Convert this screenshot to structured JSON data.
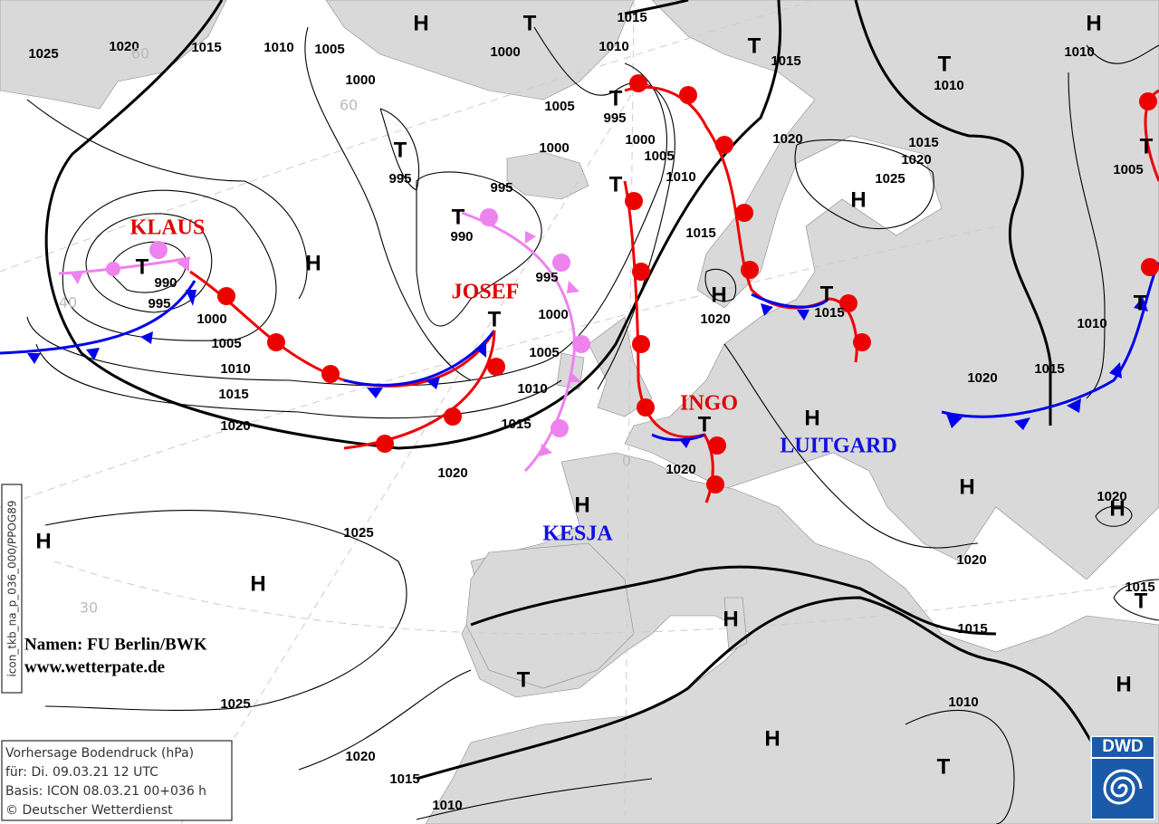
{
  "isobar_labels": [
    1025,
    1020,
    1015,
    1010,
    1005,
    1000,
    1000,
    1015,
    1010,
    1015,
    1010,
    1010,
    1005,
    995,
    1000,
    1000,
    1005,
    1010,
    1020,
    1015,
    1020,
    1025,
    1005,
    995,
    995,
    990,
    1015,
    990,
    995,
    1000,
    1005,
    1010,
    1015,
    1020,
    995,
    1000,
    1005,
    1010,
    1015,
    1020,
    1020,
    1015,
    1010,
    1015,
    1020,
    1020,
    1020,
    1025,
    1020,
    1015,
    1015,
    1025,
    1010,
    1020,
    1015,
    1010
  ],
  "pressure_centers": [
    "H",
    "T",
    "T",
    "H",
    "T",
    "T",
    "T",
    "T",
    "H",
    "T",
    "T",
    "H",
    "T",
    "H",
    "T",
    "T",
    "T",
    "T",
    "H",
    "H",
    "H",
    "H",
    "H",
    "H",
    "H",
    "T",
    "T",
    "H",
    "H",
    "T"
  ],
  "system_names": [
    "KLAUS",
    "JOSEF",
    "INGO",
    "LUITGARD",
    "KESJA"
  ],
  "latitude_labels": [
    "60",
    "60",
    "40",
    "30",
    "0"
  ],
  "credits": [
    "Namen: FU Berlin/BWK",
    "www.wetterpate.de"
  ],
  "run_id": "icon_tkb_na_p_036_000/PPOG89",
  "info_box": [
    "Vorhersage Bodendruck (hPa)",
    "für:  Di. 09.03.21  12 UTC",
    "Basis: ICON  08.03.21 00+036 h",
    "© Deutscher Wetterdienst"
  ],
  "logo": "DWD"
}
